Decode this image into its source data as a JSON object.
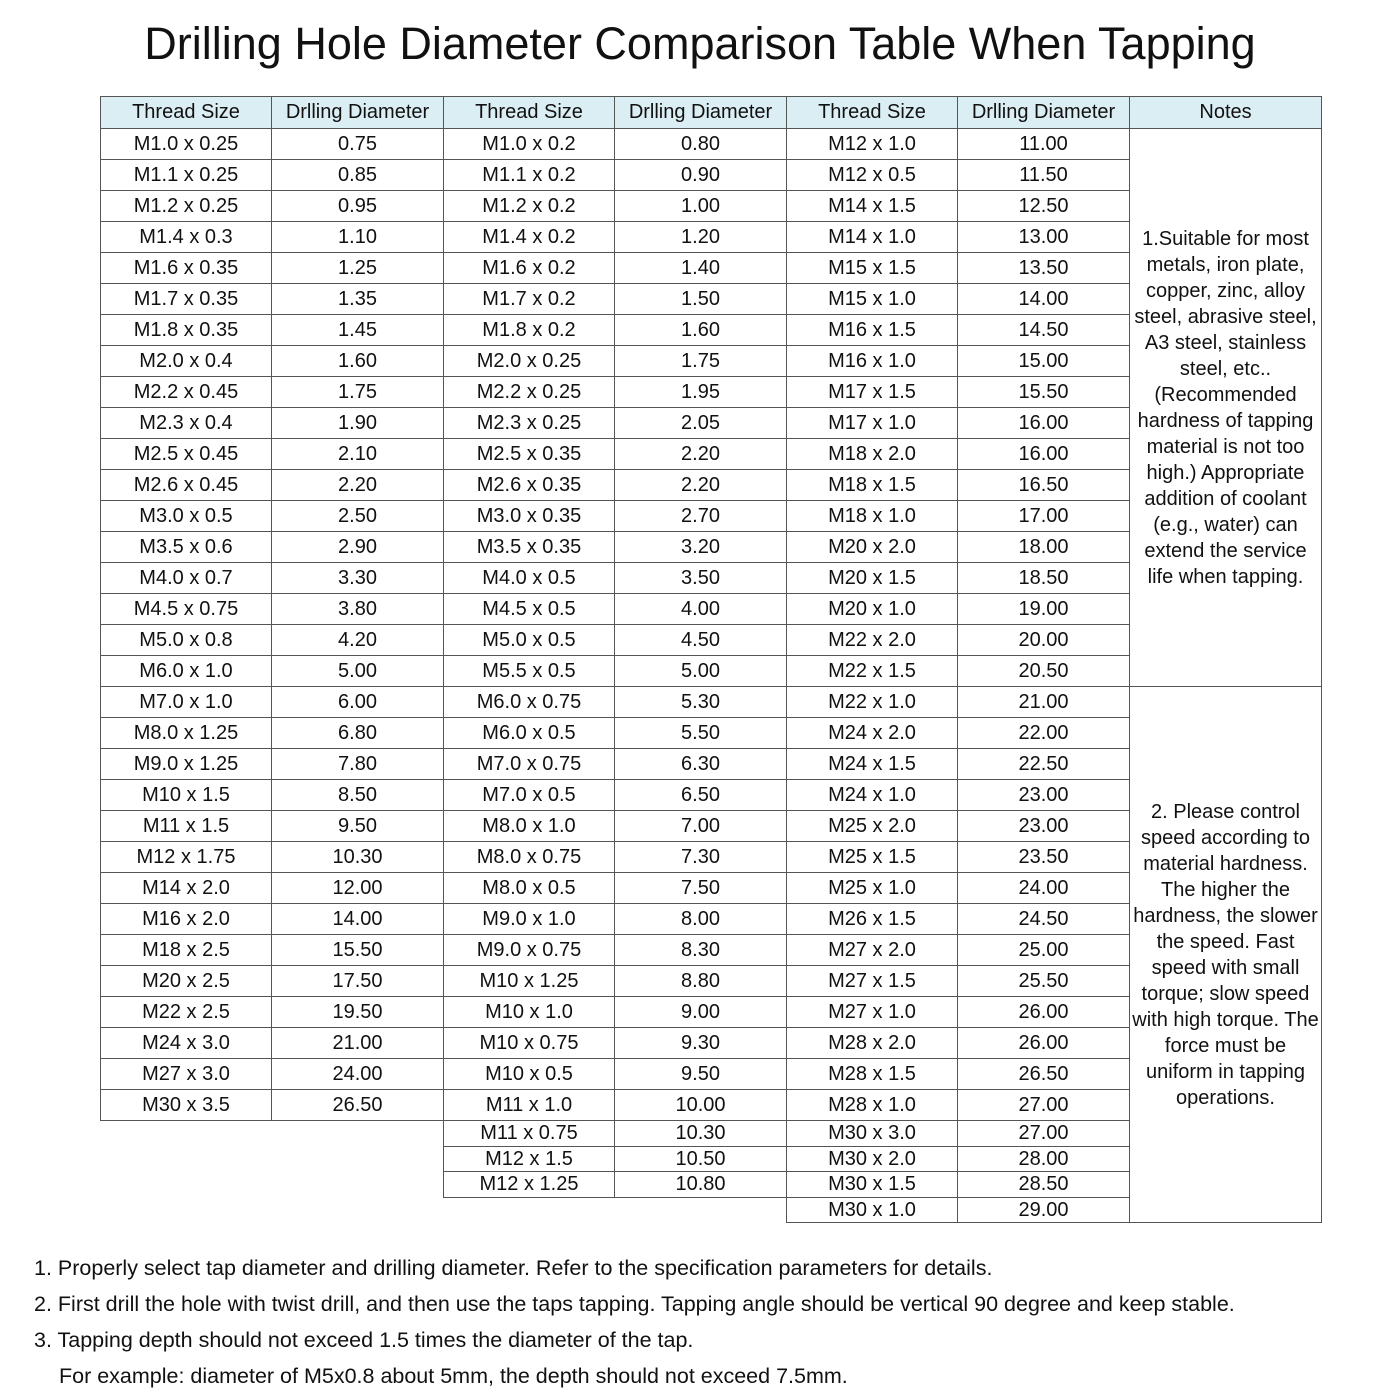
{
  "title": "Drilling Hole Diameter Comparison Table When Tapping",
  "headers": [
    "Thread Size",
    "Drlling Diameter",
    "Thread Size",
    "Drlling Diameter",
    "Thread Size",
    "Drlling Diameter",
    "Notes"
  ],
  "groups": [
    [
      [
        "M1.0 x 0.25",
        "0.75"
      ],
      [
        "M1.1 x 0.25",
        "0.85"
      ],
      [
        "M1.2 x 0.25",
        "0.95"
      ],
      [
        "M1.4 x 0.3",
        "1.10"
      ],
      [
        "M1.6 x 0.35",
        "1.25"
      ],
      [
        "M1.7 x 0.35",
        "1.35"
      ],
      [
        "M1.8 x 0.35",
        "1.45"
      ],
      [
        "M2.0 x 0.4",
        "1.60"
      ],
      [
        "M2.2 x 0.45",
        "1.75"
      ],
      [
        "M2.3 x 0.4",
        "1.90"
      ],
      [
        "M2.5 x 0.45",
        "2.10"
      ],
      [
        "M2.6 x 0.45",
        "2.20"
      ],
      [
        "M3.0 x 0.5",
        "2.50"
      ],
      [
        "M3.5 x 0.6",
        "2.90"
      ],
      [
        "M4.0 x 0.7",
        "3.30"
      ],
      [
        "M4.5 x 0.75",
        "3.80"
      ],
      [
        "M5.0 x 0.8",
        "4.20"
      ],
      [
        "M6.0 x 1.0",
        "5.00"
      ],
      [
        "M7.0 x 1.0",
        "6.00"
      ],
      [
        "M8.0 x 1.25",
        "6.80"
      ],
      [
        "M9.0 x 1.25",
        "7.80"
      ],
      [
        "M10 x 1.5",
        "8.50"
      ],
      [
        "M11 x 1.5",
        "9.50"
      ],
      [
        "M12 x 1.75",
        "10.30"
      ],
      [
        "M14 x 2.0",
        "12.00"
      ],
      [
        "M16 x 2.0",
        "14.00"
      ],
      [
        "M18 x 2.5",
        "15.50"
      ],
      [
        "M20 x 2.5",
        "17.50"
      ],
      [
        "M22 x 2.5",
        "19.50"
      ],
      [
        "M24 x 3.0",
        "21.00"
      ],
      [
        "M27 x 3.0",
        "24.00"
      ],
      [
        "M30 x 3.5",
        "26.50"
      ]
    ],
    [
      [
        "M1.0 x 0.2",
        "0.80"
      ],
      [
        "M1.1 x 0.2",
        "0.90"
      ],
      [
        "M1.2 x 0.2",
        "1.00"
      ],
      [
        "M1.4 x 0.2",
        "1.20"
      ],
      [
        "M1.6 x 0.2",
        "1.40"
      ],
      [
        "M1.7 x 0.2",
        "1.50"
      ],
      [
        "M1.8 x 0.2",
        "1.60"
      ],
      [
        "M2.0 x 0.25",
        "1.75"
      ],
      [
        "M2.2 x 0.25",
        "1.95"
      ],
      [
        "M2.3 x 0.25",
        "2.05"
      ],
      [
        "M2.5 x 0.35",
        "2.20"
      ],
      [
        "M2.6 x 0.35",
        "2.20"
      ],
      [
        "M3.0 x 0.35",
        "2.70"
      ],
      [
        "M3.5 x 0.35",
        "3.20"
      ],
      [
        "M4.0 x 0.5",
        "3.50"
      ],
      [
        "M4.5 x 0.5",
        "4.00"
      ],
      [
        "M5.0 x 0.5",
        "4.50"
      ],
      [
        "M5.5 x 0.5",
        "5.00"
      ],
      [
        "M6.0 x 0.75",
        "5.30"
      ],
      [
        "M6.0 x 0.5",
        "5.50"
      ],
      [
        "M7.0 x 0.75",
        "6.30"
      ],
      [
        "M7.0 x 0.5",
        "6.50"
      ],
      [
        "M8.0 x 1.0",
        "7.00"
      ],
      [
        "M8.0 x 0.75",
        "7.30"
      ],
      [
        "M8.0 x 0.5",
        "7.50"
      ],
      [
        "M9.0 x 1.0",
        "8.00"
      ],
      [
        "M9.0 x 0.75",
        "8.30"
      ],
      [
        "M10 x 1.25",
        "8.80"
      ],
      [
        "M10 x 1.0",
        "9.00"
      ],
      [
        "M10 x 0.75",
        "9.30"
      ],
      [
        "M10 x 0.5",
        "9.50"
      ],
      [
        "M11 x 1.0",
        "10.00"
      ],
      [
        "M11 x 0.75",
        "10.30"
      ],
      [
        "M12 x 1.5",
        "10.50"
      ],
      [
        "M12 x 1.25",
        "10.80"
      ]
    ],
    [
      [
        "M12 x 1.0",
        "11.00"
      ],
      [
        "M12 x 0.5",
        "11.50"
      ],
      [
        "M14 x 1.5",
        "12.50"
      ],
      [
        "M14 x 1.0",
        "13.00"
      ],
      [
        "M15 x 1.5",
        "13.50"
      ],
      [
        "M15 x 1.0",
        "14.00"
      ],
      [
        "M16 x 1.5",
        "14.50"
      ],
      [
        "M16 x 1.0",
        "15.00"
      ],
      [
        "M17 x 1.5",
        "15.50"
      ],
      [
        "M17 x 1.0",
        "16.00"
      ],
      [
        "M18 x 2.0",
        "16.00"
      ],
      [
        "M18 x 1.5",
        "16.50"
      ],
      [
        "M18 x 1.0",
        "17.00"
      ],
      [
        "M20 x 2.0",
        "18.00"
      ],
      [
        "M20 x 1.5",
        "18.50"
      ],
      [
        "M20 x 1.0",
        "19.00"
      ],
      [
        "M22 x 2.0",
        "20.00"
      ],
      [
        "M22 x 1.5",
        "20.50"
      ],
      [
        "M22 x 1.0",
        "21.00"
      ],
      [
        "M24 x 2.0",
        "22.00"
      ],
      [
        "M24 x 1.5",
        "22.50"
      ],
      [
        "M24 x 1.0",
        "23.00"
      ],
      [
        "M25 x 2.0",
        "23.00"
      ],
      [
        "M25 x 1.5",
        "23.50"
      ],
      [
        "M25 x 1.0",
        "24.00"
      ],
      [
        "M26 x 1.5",
        "24.50"
      ],
      [
        "M27 x 2.0",
        "25.00"
      ],
      [
        "M27 x 1.5",
        "25.50"
      ],
      [
        "M27 x 1.0",
        "26.00"
      ],
      [
        "M28 x 2.0",
        "26.00"
      ],
      [
        "M28 x 1.5",
        "26.50"
      ],
      [
        "M28 x 1.0",
        "27.00"
      ],
      [
        "M30 x 3.0",
        "27.00"
      ],
      [
        "M30 x 2.0",
        "28.00"
      ],
      [
        "M30 x 1.5",
        "28.50"
      ],
      [
        "M30 x 1.0",
        "29.00"
      ]
    ]
  ],
  "notes": [
    "1.Suitable for most metals, iron plate, copper, zinc, alloy steel, abrasive steel, A3 steel, stainless steel, etc..(Recommended hardness of tapping material is not too high.) Appropriate addition of coolant (e.g., water) can extend the service life when tapping.",
    "2. Please control speed according to material hardness. The higher the hardness, the slower the speed. Fast speed with small torque; slow speed with high torque. The force must be uniform in tapping operations."
  ],
  "footer": [
    "1. Properly select tap diameter and drilling diameter. Refer to the specification parameters for details.",
    "2. First drill the hole with twist drill, and then use the taps tapping. Tapping angle should be vertical 90 degree and keep stable.",
    "3. Tapping depth should not exceed 1.5 times the diameter of the tap.",
    "For example: diameter of M5x0.8 about 5mm, the depth should not exceed 7.5mm."
  ]
}
